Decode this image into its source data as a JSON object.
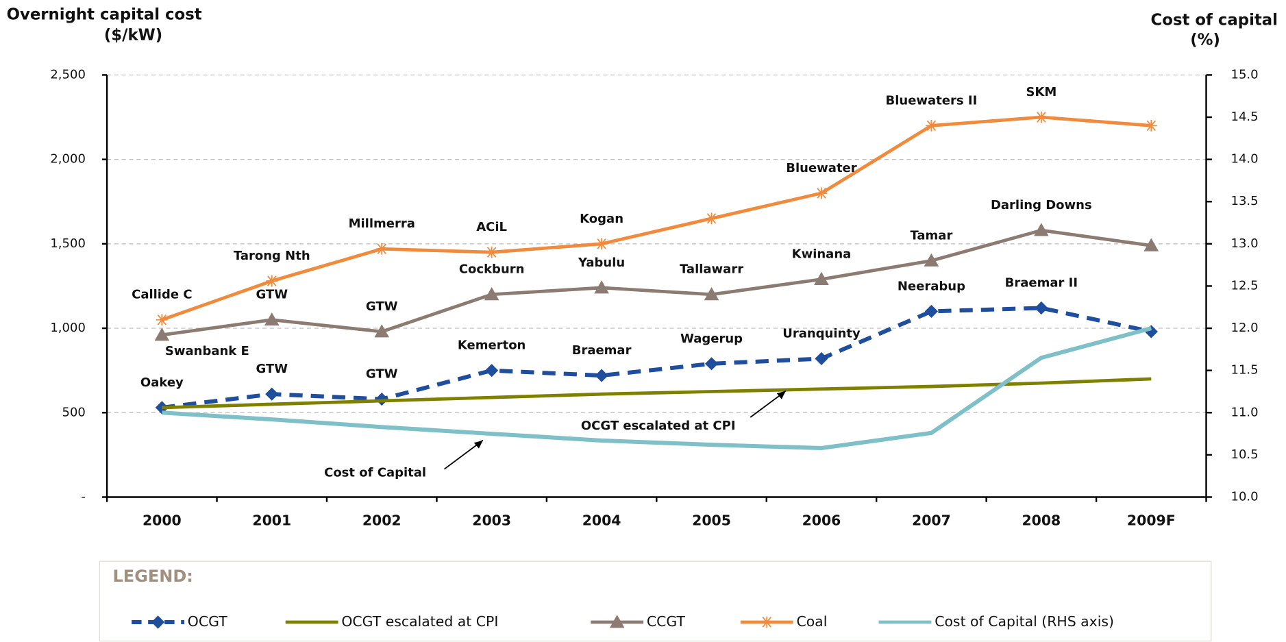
{
  "chart_data": {
    "type": "line",
    "ylabel": [
      "Overnight capital cost",
      "($/kW)"
    ],
    "y2label": [
      "Cost of capital",
      "(%)"
    ],
    "categories": [
      "2000",
      "2001",
      "2002",
      "2003",
      "2004",
      "2005",
      "2006",
      "2007",
      "2008",
      "2009F"
    ],
    "ylim": [
      0,
      2500
    ],
    "yticks": [
      {
        "value": 0,
        "label": "-"
      },
      500,
      {
        "value": 1000,
        "label": "1,000"
      },
      {
        "value": 1500,
        "label": "1,500"
      },
      {
        "value": 2000,
        "label": "2,000"
      },
      {
        "value": 2500,
        "label": "2,500"
      }
    ],
    "y2lim": [
      10,
      15
    ],
    "y2ticks": [
      {
        "value": 10,
        "label": "10.0"
      },
      10.5,
      {
        "value": 11,
        "label": "11.0"
      },
      11.5,
      {
        "value": 12,
        "label": "12.0"
      },
      12.5,
      {
        "value": 13,
        "label": "13.0"
      },
      13.5,
      {
        "value": 14,
        "label": "14.0"
      },
      14.5,
      {
        "value": 15,
        "label": "15.0"
      }
    ],
    "grid": true,
    "legend_title": "LEGEND:",
    "series": [
      {
        "name": "OCGT",
        "color": "#1f4e9c",
        "marker": "diamond",
        "dash": true,
        "values": [
          530,
          610,
          580,
          750,
          720,
          790,
          820,
          1100,
          1120,
          980
        ],
        "labels": [
          "Oakey",
          "GTW",
          "GTW",
          "Kemerton",
          "Braemar",
          "Wagerup",
          "Uranquinty",
          "Neerabup",
          "Braemar II",
          null
        ]
      },
      {
        "name": "OCGT escalated at CPI",
        "color": "#808000",
        "values": [
          530,
          550,
          570,
          590,
          610,
          625,
          640,
          655,
          675,
          700
        ]
      },
      {
        "name": "CCGT",
        "color": "#8c7b72",
        "marker": "triangle",
        "values": [
          960,
          1050,
          980,
          1200,
          1240,
          1200,
          1290,
          1400,
          1580,
          1490
        ],
        "labels": [
          "Swanbank E",
          "GTW",
          "GTW",
          "Cockburn",
          "Yabulu",
          "Tallawarr",
          "Kwinana",
          "Tamar",
          "Darling Downs",
          null
        ]
      },
      {
        "name": "Coal",
        "color": "#f08a3c",
        "marker": "asterisk",
        "values": [
          1050,
          1280,
          1470,
          1450,
          1500,
          1650,
          1800,
          2200,
          2250,
          2200
        ],
        "labels": [
          "Callide C",
          "Tarong Nth",
          "Millmerra",
          "ACiL",
          "Kogan",
          null,
          "Bluewater",
          "Bluewaters II",
          "SKM",
          null
        ]
      },
      {
        "name": "Cost of Capital (RHS axis)",
        "color": "#7fbfc8",
        "axis": "y2",
        "values": [
          11.0,
          10.92,
          10.83,
          10.75,
          10.67,
          10.62,
          10.58,
          10.76,
          11.65,
          12.0
        ]
      }
    ],
    "annotations": [
      "OCGT escalated at CPI",
      "Cost of Capital"
    ]
  }
}
